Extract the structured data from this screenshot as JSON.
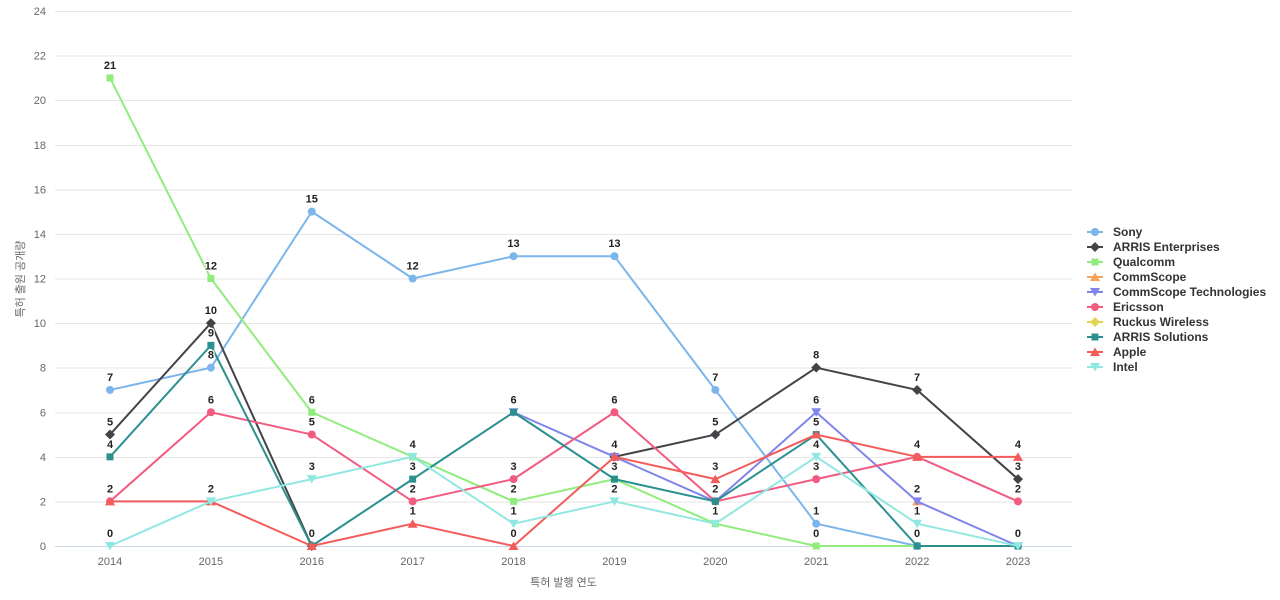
{
  "chart": {
    "x_axis_title": "특허 발행 연도",
    "y_axis_title": "특허 출원 공개량"
  },
  "chart_data": {
    "type": "line",
    "title": "",
    "xlabel": "특허 발행 연도",
    "ylabel": "특허 출원 공개량",
    "categories": [
      "2014",
      "2015",
      "2016",
      "2017",
      "2018",
      "2019",
      "2020",
      "2021",
      "2022",
      "2023"
    ],
    "ylim": [
      0,
      24
    ],
    "ytick_interval": 2,
    "grid": "horizontal-only",
    "legend_position": "right-middle",
    "axis_text_color": "#666666",
    "gridline_color": "#e6e6e6",
    "axis_line_color": "#ccd6eb",
    "data_labels": "on, bold, deduplicated when points overlap",
    "series": [
      {
        "name": "Sony",
        "color": "#7cb5ec",
        "marker": "circle",
        "values": [
          7,
          8,
          15,
          12,
          13,
          13,
          7,
          1,
          0,
          0
        ]
      },
      {
        "name": "ARRIS Enterprises",
        "color": "#434348",
        "marker": "diamond",
        "values": [
          5,
          10,
          0,
          null,
          null,
          4,
          5,
          8,
          7,
          3
        ]
      },
      {
        "name": "Qualcomm",
        "color": "#90ed7d",
        "marker": "square",
        "values": [
          21,
          12,
          6,
          4,
          2,
          3,
          1,
          0,
          0,
          0
        ]
      },
      {
        "name": "CommScope",
        "color": "#f7a35c",
        "marker": "triangle",
        "values": [
          null,
          null,
          null,
          null,
          null,
          null,
          null,
          null,
          2,
          null
        ]
      },
      {
        "name": "CommScope Technologies",
        "color": "#8085e9",
        "marker": "triangle-down",
        "values": [
          null,
          null,
          null,
          null,
          6,
          4,
          2,
          6,
          2,
          0
        ]
      },
      {
        "name": "Ericsson",
        "color": "#f15c80",
        "marker": "circle",
        "values": [
          2,
          6,
          5,
          2,
          3,
          6,
          2,
          3,
          4,
          2
        ]
      },
      {
        "name": "Ruckus Wireless",
        "color": "#e4d354",
        "marker": "diamond",
        "values": [
          null,
          null,
          null,
          null,
          null,
          null,
          null,
          null,
          null,
          null
        ]
      },
      {
        "name": "ARRIS Solutions",
        "color": "#2b908f",
        "marker": "square",
        "values": [
          4,
          9,
          0,
          3,
          6,
          3,
          2,
          5,
          0,
          0
        ]
      },
      {
        "name": "Apple",
        "color": "#f45b5b",
        "marker": "triangle",
        "values": [
          2,
          2,
          0,
          1,
          0,
          4,
          3,
          5,
          4,
          4
        ]
      },
      {
        "name": "Intel",
        "color": "#91e8e1",
        "marker": "triangle-down",
        "values": [
          0,
          2,
          3,
          4,
          1,
          2,
          1,
          4,
          1,
          0
        ]
      }
    ]
  }
}
